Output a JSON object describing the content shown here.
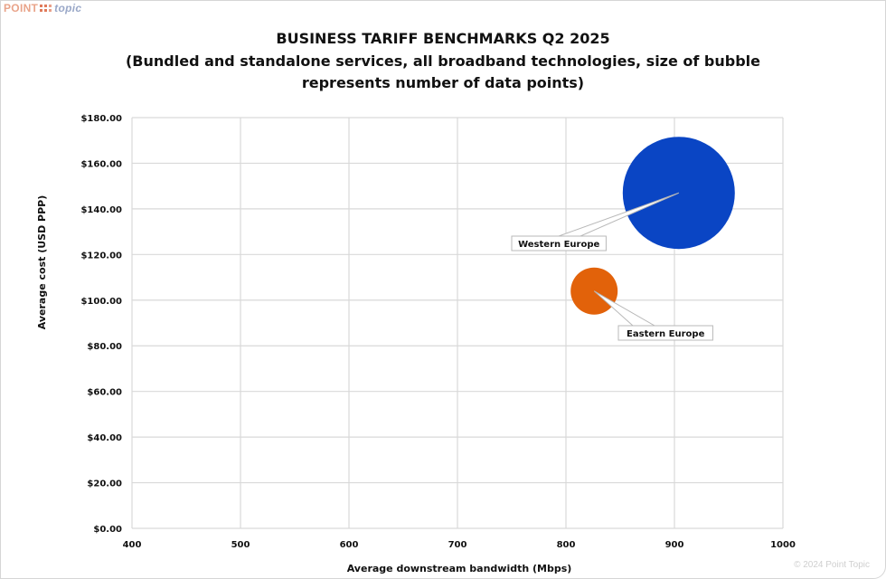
{
  "logo": {
    "point": "POINT",
    "topic": "topic"
  },
  "copyright": "© 2024 Point Topic",
  "chart_data": {
    "type": "bubble",
    "title": "BUSINESS TARIFF BENCHMARKS Q2 2025",
    "subtitle_line1": "(Bundled and standalone services, all broadband technologies, size of bubble",
    "subtitle_line2": "represents number of data points)",
    "xlabel": "Average downstream bandwidth (Mbps)",
    "ylabel": "Average cost (USD PPP)",
    "xlim": [
      400,
      1000
    ],
    "ylim": [
      0,
      180
    ],
    "x_ticks": [
      "400",
      "500",
      "600",
      "700",
      "800",
      "900",
      "1000"
    ],
    "y_ticks": [
      "$0.00",
      "$20.00",
      "$40.00",
      "$60.00",
      "$80.00",
      "$100.00",
      "$120.00",
      "$140.00",
      "$160.00",
      "$180.00"
    ],
    "grid": true,
    "legend": "none (data labels with callouts)",
    "series": [
      {
        "name": "Western Europe",
        "x": 904,
        "y": 147,
        "relative_size": 62,
        "color": "#0a45c4"
      },
      {
        "name": "Eastern Europe",
        "x": 826,
        "y": 104,
        "relative_size": 26,
        "color": "#e2620a"
      }
    ]
  }
}
